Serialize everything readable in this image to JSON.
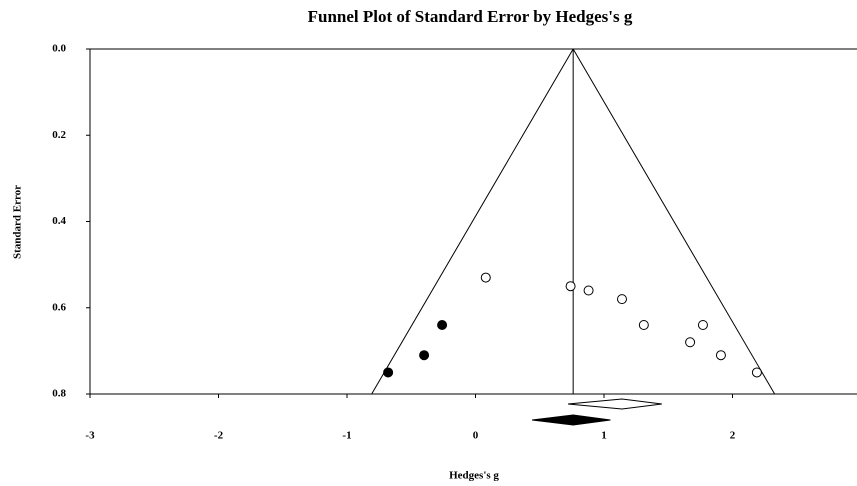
{
  "chart_data": {
    "type": "funnel",
    "title": "Funnel Plot of Standard Error by Hedges's g",
    "xlabel": "Hedges's g",
    "ylabel": "Standard Error",
    "xlim": [
      -3,
      3
    ],
    "xticks": [
      -3,
      -2,
      -1,
      0,
      1,
      2
    ],
    "ylim": [
      0,
      0.8
    ],
    "yticks": [
      {
        "value": 0,
        "label": "0.0"
      },
      0.2,
      0.4,
      0.6,
      0.8
    ],
    "y_inverted": true,
    "funnel_center": 0.76,
    "funnel_z": 1.96,
    "studies": {
      "x": [
        0.08,
        0.74,
        0.88,
        1.14,
        1.31,
        1.77,
        1.67,
        1.91,
        2.19
      ],
      "y": [
        0.53,
        0.55,
        0.56,
        0.58,
        0.64,
        0.64,
        0.68,
        0.71,
        0.75
      ],
      "filled": false
    },
    "imputed": {
      "x": [
        -0.68,
        -0.4,
        -0.26
      ],
      "y": [
        0.75,
        0.71,
        0.64
      ],
      "filled": true
    },
    "observed_summary": {
      "estimate": 1.14,
      "lower": 0.72,
      "upper": 1.45,
      "filled": false
    },
    "adjusted_summary": {
      "estimate": 0.76,
      "lower": 0.44,
      "upper": 1.05,
      "filled": true
    }
  }
}
